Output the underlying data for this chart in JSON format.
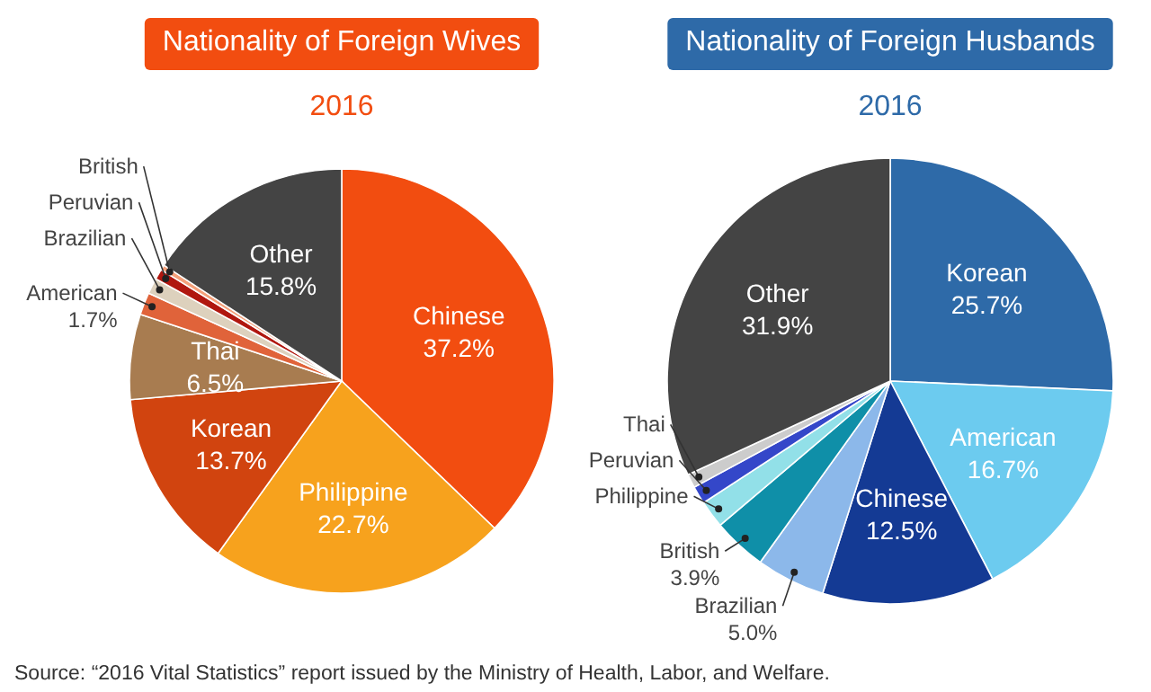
{
  "chart_data": [
    {
      "type": "pie",
      "title": "Nationality of Foreign Wives",
      "subtitle": "2016",
      "categories": [
        "Chinese",
        "Philippine",
        "Korean",
        "Thai",
        "American",
        "Brazilian",
        "Peruvian",
        "British",
        "Other"
      ],
      "values": [
        37.2,
        22.7,
        13.7,
        6.5,
        1.7,
        1.2,
        0.8,
        0.4,
        15.8
      ],
      "value_labels": [
        "37.2%",
        "22.7%",
        "13.7%",
        "6.5%",
        "1.7%",
        null,
        null,
        null,
        "15.8%"
      ],
      "colors": [
        "#f24d10",
        "#f7a21d",
        "#d1440f",
        "#a87c50",
        "#e0633a",
        "#ddd1bd",
        "#b0170f",
        "#f4a07a",
        "#444444"
      ],
      "annotations": [
        "Source: “2016 Vital Statistics” report issued by the Ministry of Health, Labor, and Welfare."
      ]
    },
    {
      "type": "pie",
      "title": "Nationality of Foreign Husbands",
      "subtitle": "2016",
      "categories": [
        "Korean",
        "American",
        "Chinese",
        "Brazilian",
        "British",
        "Philippine",
        "Peruvian",
        "Thai",
        "Other"
      ],
      "values": [
        25.7,
        16.7,
        12.5,
        5.0,
        3.9,
        2.0,
        1.3,
        1.0,
        31.9
      ],
      "value_labels": [
        "25.7%",
        "16.7%",
        "12.5%",
        "5.0%",
        "3.9%",
        null,
        null,
        null,
        "31.9%"
      ],
      "colors": [
        "#2e6aa8",
        "#6ccbef",
        "#143a94",
        "#8cb8ea",
        "#0f8fa8",
        "#92e0e8",
        "#3447c9",
        "#cccccc",
        "#444444"
      ]
    }
  ]
}
